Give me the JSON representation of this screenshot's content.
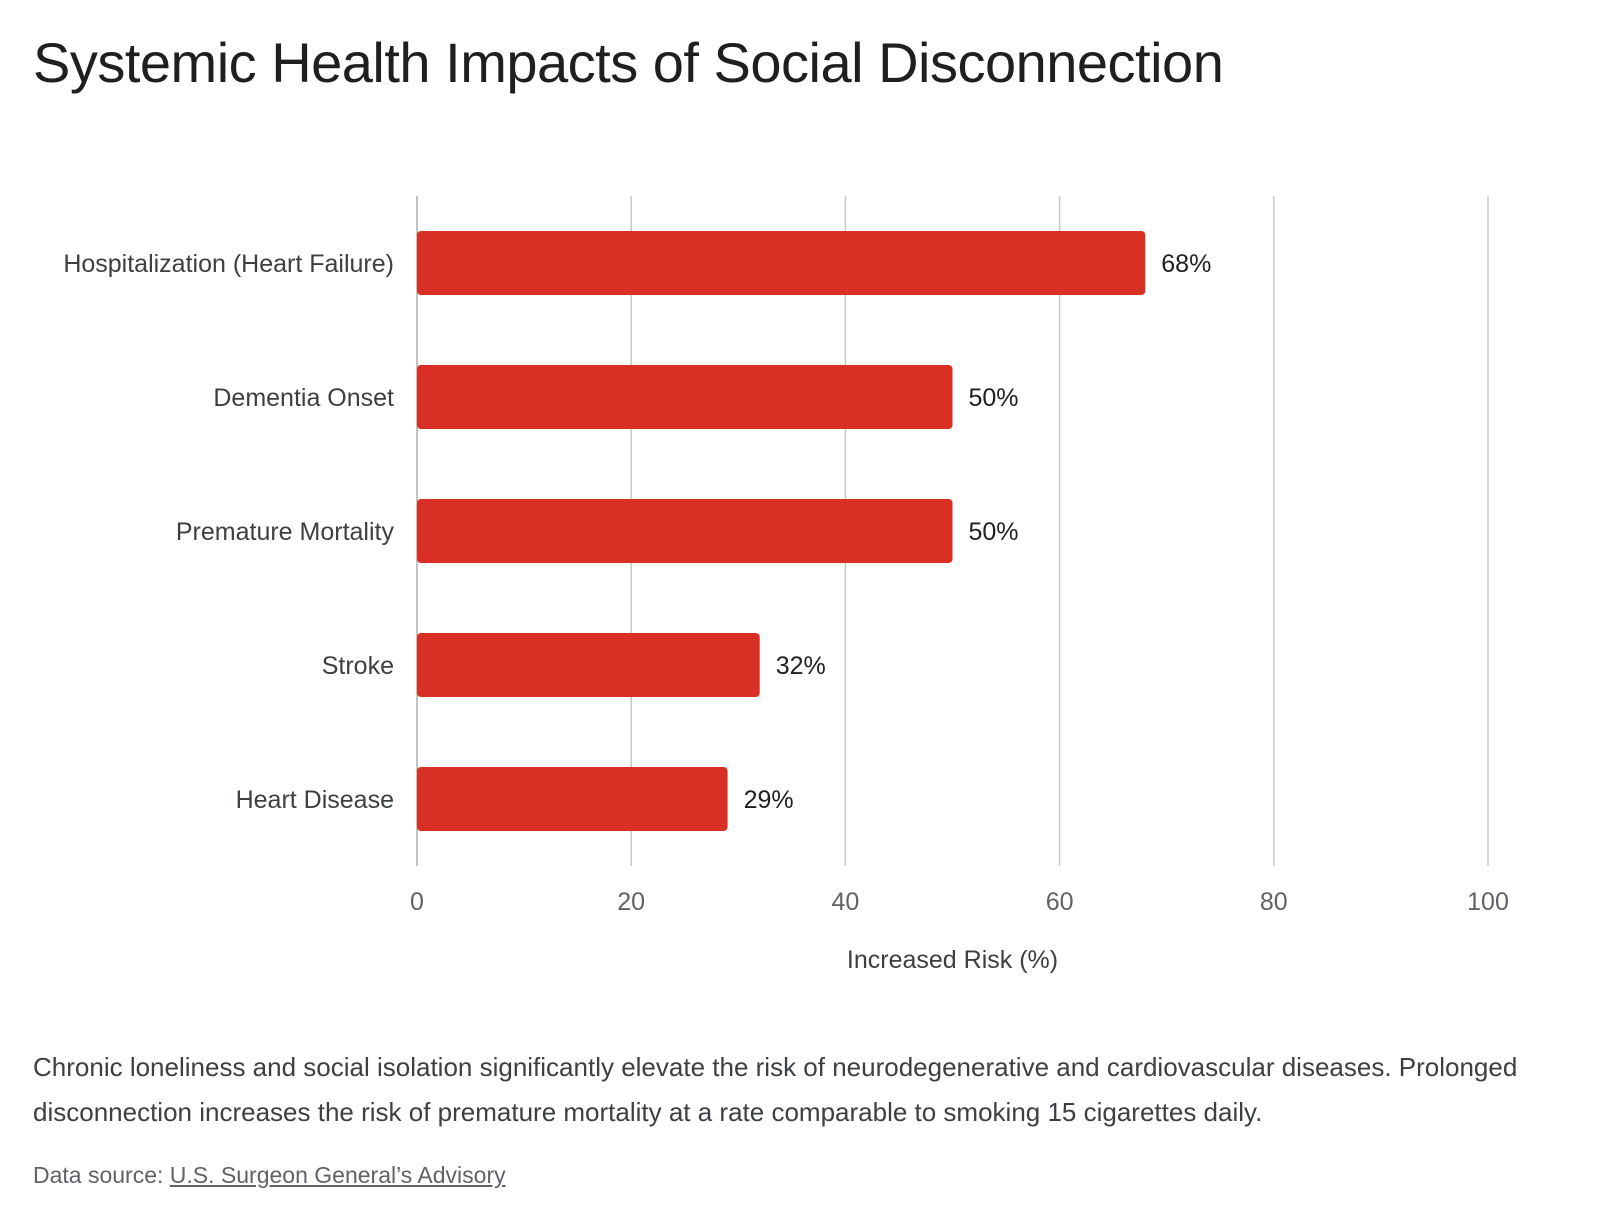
{
  "title": "Systemic Health Impacts of Social Disconnection",
  "chart_data": {
    "type": "bar",
    "orientation": "horizontal",
    "categories": [
      "Hospitalization (Heart Failure)",
      "Dementia Onset",
      "Premature Mortality",
      "Stroke",
      "Heart Disease"
    ],
    "values": [
      68,
      50,
      50,
      32,
      29
    ],
    "data_labels": [
      "68%",
      "50%",
      "50%",
      "32%",
      "29%"
    ],
    "xlabel": "Increased Risk (%)",
    "ylabel": "",
    "xlim": [
      0,
      100
    ],
    "xticks": [
      0,
      20,
      40,
      60,
      80,
      100
    ],
    "grid": true,
    "bar_color": "#d93025"
  },
  "caption": "Chronic loneliness and social isolation significantly elevate the risk of neurodegenerative and cardiovascular diseases. Prolonged disconnection increases the risk of premature mortality at a rate comparable to smoking 15 cigarettes daily.",
  "source": {
    "prefix": "Data source: ",
    "link_text": "U.S. Surgeon General’s Advisory"
  }
}
